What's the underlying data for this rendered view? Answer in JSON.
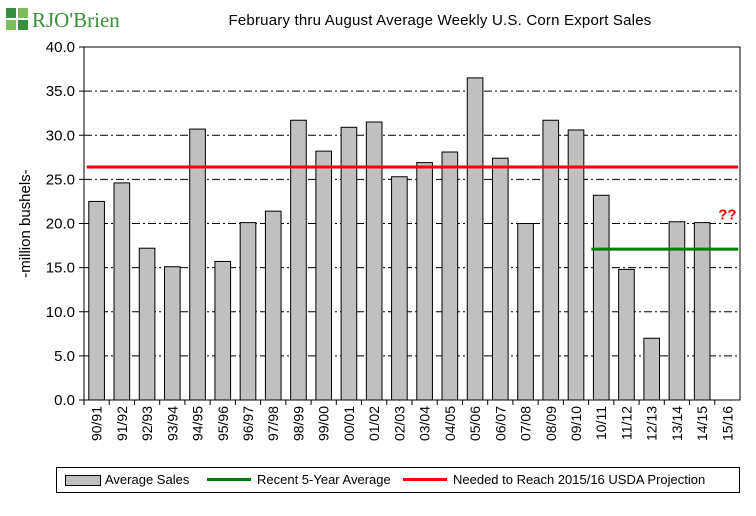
{
  "logo": {
    "text": "RJO'Brien",
    "icon": "rjo-brien-logo-icon"
  },
  "chart_data": {
    "type": "bar",
    "title": "February thru August Average Weekly U.S. Corn Export Sales",
    "ylabel": "-million bushels-",
    "xlabel": "",
    "ylim": [
      0,
      40
    ],
    "yticks": [
      "0.0",
      "5.0",
      "10.0",
      "15.0",
      "20.0",
      "25.0",
      "30.0",
      "35.0",
      "40.0"
    ],
    "grid": "horizontal dash-dot",
    "categories": [
      "90/91",
      "91/92",
      "92/93",
      "93/94",
      "94/95",
      "95/96",
      "96/97",
      "97/98",
      "98/99",
      "99/00",
      "00/01",
      "01/02",
      "02/03",
      "03/04",
      "04/05",
      "05/06",
      "06/07",
      "07/08",
      "08/09",
      "09/10",
      "10/11",
      "11/12",
      "12/13",
      "13/14",
      "14/15",
      "15/16"
    ],
    "series": [
      {
        "name": "Average Sales",
        "type": "bar",
        "color": "#c0c0c0",
        "values": [
          22.5,
          24.6,
          17.2,
          15.1,
          30.7,
          15.7,
          20.1,
          21.4,
          31.7,
          28.2,
          30.9,
          31.5,
          25.3,
          26.9,
          28.1,
          36.5,
          27.4,
          20.0,
          31.7,
          30.6,
          23.2,
          14.8,
          7.0,
          20.2,
          20.1,
          null
        ]
      },
      {
        "name": "Recent 5-Year Average",
        "type": "line",
        "color": "#008000",
        "from": "10/11",
        "to": "15/16",
        "value": 17.1
      },
      {
        "name": "Needed to Reach 2015/16 USDA Projection",
        "type": "line",
        "color": "#ff0000",
        "from": "90/91",
        "to": "15/16",
        "value": 26.4
      }
    ],
    "annotations": [
      {
        "text": "??",
        "category": "15/16",
        "y": 21.0,
        "color": "#ff0000"
      }
    ],
    "legend_position": "bottom"
  }
}
